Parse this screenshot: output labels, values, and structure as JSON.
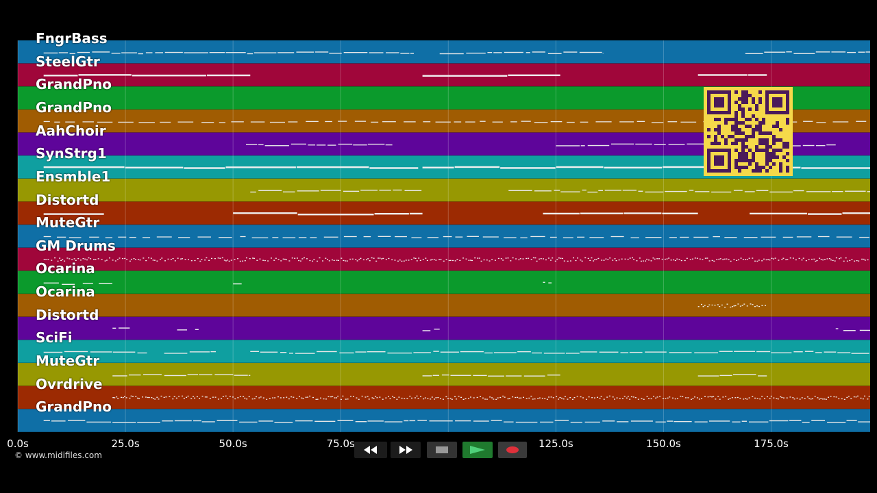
{
  "player": {
    "copyright": "© www.midifiles.com",
    "qr_label": "qr-code"
  },
  "timeline": {
    "x_max_seconds": 198,
    "ticks": [
      "0.0s",
      "25.0s",
      "50.0s",
      "75.0s",
      "125.0s",
      "150.0s",
      "175.0s"
    ],
    "tick_seconds": [
      0,
      25,
      50,
      75,
      125,
      150,
      175
    ],
    "gridline_seconds": [
      0,
      25,
      50,
      75,
      100,
      125,
      150,
      175
    ]
  },
  "tracks": [
    {
      "name": "FngrBass",
      "color": "#0f6fa6",
      "style": "line",
      "segments": [
        [
          6,
          92
        ],
        [
          98,
          136
        ],
        [
          169,
          198
        ]
      ]
    },
    {
      "name": "SteelGtr",
      "color": "#a0063a",
      "style": "bold",
      "segments": [
        [
          6,
          54
        ],
        [
          94,
          126
        ],
        [
          158,
          174
        ]
      ]
    },
    {
      "name": "GrandPno",
      "color": "#0b9a2c",
      "style": "none",
      "segments": []
    },
    {
      "name": "GrandPno",
      "color": "#a05c02",
      "style": "dash",
      "segments": [
        [
          6,
          198
        ]
      ]
    },
    {
      "name": "AahChoir",
      "color": "#5e059a",
      "style": "line",
      "segments": [
        [
          53,
          87
        ],
        [
          125,
          190
        ]
      ]
    },
    {
      "name": "SynStrg1",
      "color": "#0f9fa0",
      "style": "bold",
      "segments": [
        [
          6,
          93
        ],
        [
          94,
          198
        ]
      ]
    },
    {
      "name": "Ensmble1",
      "color": "#979802",
      "style": "line",
      "segments": [
        [
          54,
          94
        ],
        [
          114,
          198
        ]
      ]
    },
    {
      "name": "Distortd",
      "color": "#9c2a02",
      "style": "bold",
      "segments": [
        [
          6,
          20
        ],
        [
          50,
          94
        ],
        [
          122,
          158
        ],
        [
          170,
          198
        ]
      ]
    },
    {
      "name": "MuteGtr",
      "color": "#0f6fa6",
      "style": "dash",
      "segments": [
        [
          6,
          198
        ]
      ]
    },
    {
      "name": "GM Drums",
      "color": "#a0063a",
      "style": "dots",
      "segments": [
        [
          6,
          198
        ]
      ]
    },
    {
      "name": "Ocarina",
      "color": "#0b9a2c",
      "style": "sparse",
      "segments": [
        [
          6,
          22
        ],
        [
          50,
          52
        ],
        [
          122,
          124
        ]
      ]
    },
    {
      "name": "Ocarina",
      "color": "#a05c02",
      "style": "dots",
      "segments": [
        [
          158,
          174
        ]
      ]
    },
    {
      "name": "Distortd",
      "color": "#5e059a",
      "style": "sparse",
      "segments": [
        [
          22,
          26
        ],
        [
          37,
          42
        ],
        [
          94,
          98
        ],
        [
          190,
          198
        ]
      ]
    },
    {
      "name": "SciFi",
      "color": "#0f9fa0",
      "style": "line",
      "segments": [
        [
          6,
          30
        ],
        [
          34,
          46
        ],
        [
          54,
          198
        ]
      ]
    },
    {
      "name": "MuteGtr",
      "color": "#979802",
      "style": "line",
      "segments": [
        [
          22,
          54
        ],
        [
          94,
          126
        ],
        [
          158,
          174
        ]
      ]
    },
    {
      "name": "Ovrdrive",
      "color": "#9c2a02",
      "style": "dots",
      "segments": [
        [
          22,
          198
        ]
      ]
    },
    {
      "name": "GrandPno",
      "color": "#0f6fa6",
      "style": "line",
      "segments": [
        [
          6,
          198
        ]
      ]
    }
  ],
  "transport": {
    "rewind": "rewind-icon",
    "fast_forward": "fast-forward-icon",
    "stop": "stop-icon",
    "play": "play-icon",
    "record": "record-icon"
  }
}
